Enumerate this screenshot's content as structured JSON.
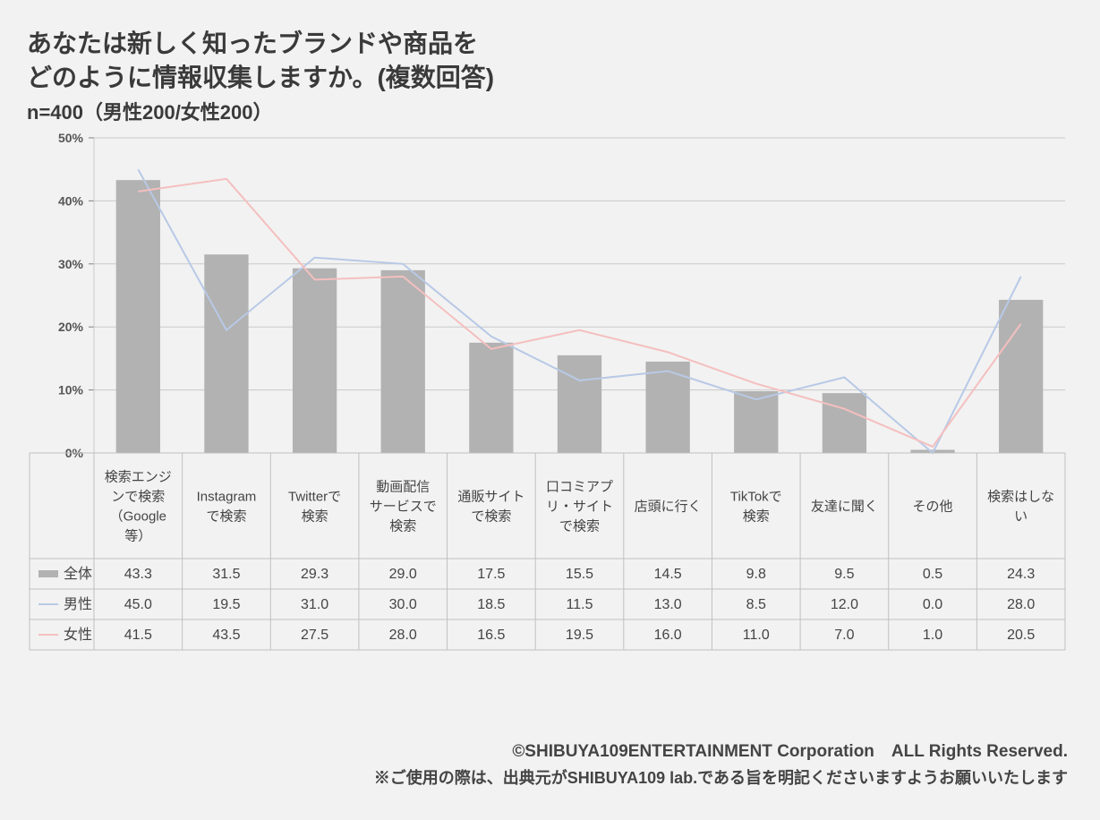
{
  "title_line1": "あなたは新しく知ったブランドや商品を",
  "title_line2": "どのように情報収集しますか。(複数回答)",
  "subtitle": "n=400（男性200/女性200）",
  "credit": "©SHIBUYA109ENTERTAINMENT Corporation　ALL Rights Reserved.",
  "note": "※ご使用の際は、出典元がSHIBUYA109 lab.である旨を明記くださいますようお願いいたします",
  "chart": {
    "type": "bar+line",
    "background_color": "#f2f2f2",
    "ylim": [
      0,
      50
    ],
    "ytick_step": 10,
    "y_axis_label_suffix": "%",
    "axis_color": "#c9c9c9",
    "grid_color": "#c9c9c9",
    "tick_mark_color": "#808080",
    "axis_label_color": "#555555",
    "axis_label_fontsize": 14,
    "category_fontsize": 15,
    "table_fontsize": 16,
    "table_border_color": "#c0c0c0",
    "legend_icon_bar": "bar",
    "legend_icon_line": "line",
    "bar_width_ratio": 0.5,
    "line_width": 2,
    "categories": [
      "検索エンジンで検索（Google等）",
      "Instagramで検索",
      "Twitterで検索",
      "動画配信サービスで検索",
      "通販サイトで検索",
      "口コミアプリ・サイトで検索",
      "店頭に行く",
      "TikTokで検索",
      "友達に聞く",
      "その他",
      "検索はしない"
    ],
    "category_lines": [
      [
        "検索エンジ",
        "ンで検索",
        "（Google",
        "等）"
      ],
      [
        "Instagram",
        "で検索"
      ],
      [
        "Twitterで",
        "検索"
      ],
      [
        "動画配信",
        "サービスで",
        "検索"
      ],
      [
        "通販サイト",
        "で検索"
      ],
      [
        "口コミアプ",
        "リ・サイト",
        "で検索"
      ],
      [
        "店頭に行く"
      ],
      [
        "TikTokで",
        "検索"
      ],
      [
        "友達に聞く"
      ],
      [
        "その他"
      ],
      [
        "検索はしな",
        "い"
      ]
    ],
    "series": [
      {
        "key": "all",
        "label": "全体",
        "type": "bar",
        "color": "#b2b2b2",
        "values": [
          43.3,
          31.5,
          29.3,
          29.0,
          17.5,
          15.5,
          14.5,
          9.8,
          9.5,
          0.5,
          24.3
        ]
      },
      {
        "key": "male",
        "label": "男性",
        "type": "line",
        "color": "#b8c9e6",
        "values": [
          45.0,
          19.5,
          31.0,
          30.0,
          18.5,
          11.5,
          13.0,
          8.5,
          12.0,
          0.0,
          28.0
        ]
      },
      {
        "key": "female",
        "label": "女性",
        "type": "line",
        "color": "#f5bfbf",
        "values": [
          41.5,
          43.5,
          27.5,
          28.0,
          16.5,
          19.5,
          16.0,
          11.0,
          7.0,
          1.0,
          20.5
        ]
      }
    ]
  }
}
